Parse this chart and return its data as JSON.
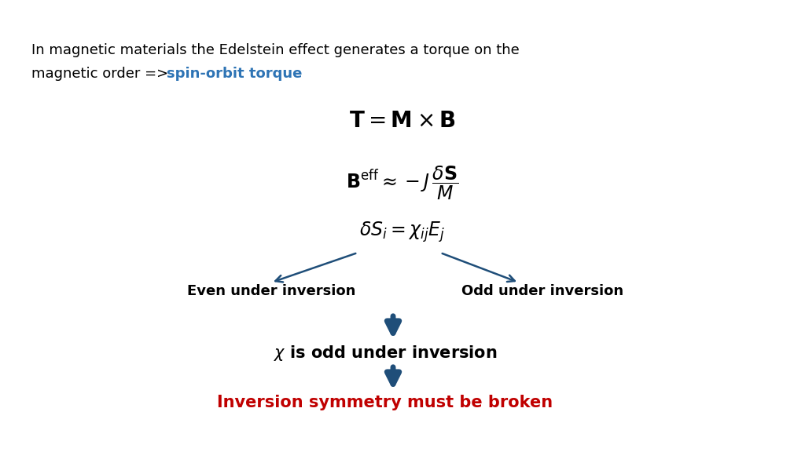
{
  "bg_color": "#ffffff",
  "title_text_line1": "In magnetic materials the Edelstein effect generates a torque on the",
  "title_text_line2": "magnetic order => ",
  "title_highlight": "spin-orbit torque",
  "title_color": "#000000",
  "highlight_color": "#2E74B5",
  "eq1": "$\\mathbf{T} = \\mathbf{M} \\times \\mathbf{B}$",
  "eq2": "$\\mathbf{B}^{\\mathrm{eff}} \\approx -J\\,\\dfrac{\\delta\\mathbf{S}}{M}$",
  "eq3": "$\\delta S_i = \\chi_{ij} E_j$",
  "label_left": "Even under inversion",
  "label_right": "Odd under inversion",
  "chi_line": "$\\chi$ is odd under inversion",
  "final_text": "Inversion symmetry must be broken",
  "final_color": "#C00000",
  "arrow_color": "#1F4E79",
  "fontsize_intro": 13,
  "fontsize_eq1": 20,
  "fontsize_eq2": 17,
  "fontsize_eq3": 17,
  "fontsize_label": 13,
  "fontsize_chi": 15,
  "fontsize_final": 15
}
